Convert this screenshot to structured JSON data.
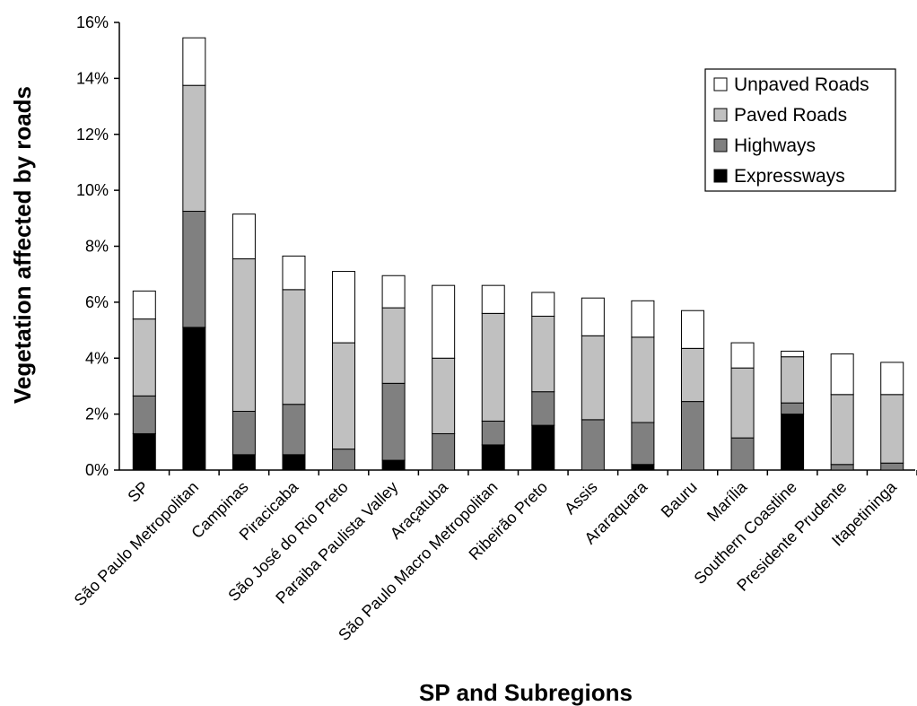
{
  "chart_data": {
    "type": "bar",
    "stacked": true,
    "title": "",
    "xlabel": "SP and Subregions",
    "ylabel": "Vegetation affected by roads",
    "ylim": [
      0,
      16
    ],
    "yticks": [
      "0%",
      "2%",
      "4%",
      "6%",
      "8%",
      "10%",
      "12%",
      "14%",
      "16%"
    ],
    "grid": false,
    "legend_position": "top-right",
    "categories": [
      "SP",
      "São Paulo Metropolitan",
      "Campinas",
      "Piracicaba",
      "São José do Rio Preto",
      "Paraiba Paulista Valley",
      "Araçatuba",
      "São Paulo Macro Metropolitan",
      "Ribeirão Preto",
      "Assis",
      "Araraquara",
      "Bauru",
      "Marília",
      "Southern Coastline",
      "Presidente Prudente",
      "Itapetininga"
    ],
    "series": [
      {
        "name": "Expressways",
        "color": "#000000",
        "values": [
          1.3,
          5.1,
          0.55,
          0.55,
          0,
          0.35,
          0,
          0.9,
          1.6,
          0,
          0.2,
          0,
          0,
          2.0,
          0,
          0
        ]
      },
      {
        "name": "Highways",
        "color": "#808080",
        "values": [
          1.35,
          4.15,
          1.55,
          1.8,
          0.75,
          2.75,
          1.3,
          0.85,
          1.2,
          1.8,
          1.5,
          2.45,
          1.15,
          0.4,
          0.2,
          0.25
        ]
      },
      {
        "name": "Paved Roads",
        "color": "#c0c0c0",
        "values": [
          2.75,
          4.5,
          5.45,
          4.1,
          3.8,
          2.7,
          2.7,
          3.85,
          2.7,
          3.0,
          3.05,
          1.9,
          2.5,
          1.65,
          2.5,
          2.45
        ]
      },
      {
        "name": "Unpaved Roads",
        "color": "#ffffff",
        "values": [
          1.0,
          1.7,
          1.6,
          1.2,
          2.55,
          1.15,
          2.6,
          1.0,
          0.85,
          1.35,
          1.3,
          1.35,
          0.9,
          0.2,
          1.45,
          1.15
        ]
      }
    ],
    "legend_order": [
      "Unpaved Roads",
      "Paved Roads",
      "Highways",
      "Expressways"
    ]
  }
}
